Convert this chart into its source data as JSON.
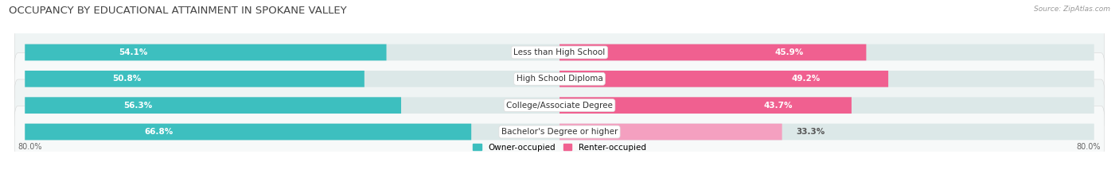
{
  "title": "OCCUPANCY BY EDUCATIONAL ATTAINMENT IN SPOKANE VALLEY",
  "source": "Source: ZipAtlas.com",
  "categories": [
    "Less than High School",
    "High School Diploma",
    "College/Associate Degree",
    "Bachelor's Degree or higher"
  ],
  "owner_values": [
    54.1,
    50.8,
    56.3,
    66.8
  ],
  "renter_values": [
    45.9,
    49.2,
    43.7,
    33.3
  ],
  "owner_color": "#3dbfbf",
  "renter_colors": [
    "#f06090",
    "#f06090",
    "#f06090",
    "#f4a0c0"
  ],
  "row_bg_color_odd": "#eff4f4",
  "row_bg_color_even": "#f7f9f9",
  "pill_bg_color": "#e0e8e8",
  "xlim_left": -80.0,
  "xlim_right": 80.0,
  "x_left_label": "80.0%",
  "x_right_label": "80.0%",
  "legend_owner": "Owner-occupied",
  "legend_renter": "Renter-occupied",
  "legend_renter_color": "#f06090",
  "title_fontsize": 9.5,
  "bar_height": 0.62,
  "label_fontsize": 7.5,
  "cat_fontsize": 7.5
}
